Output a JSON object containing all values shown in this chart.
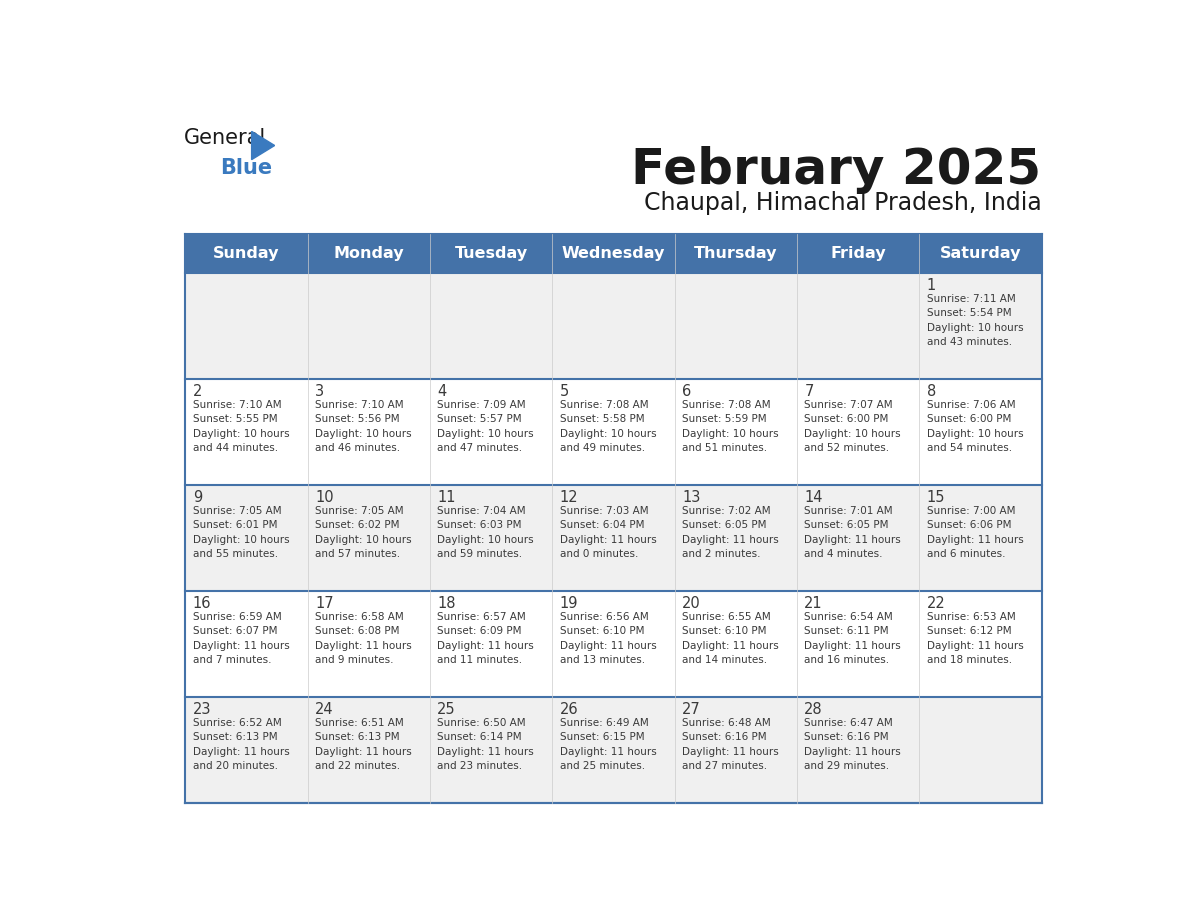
{
  "title": "February 2025",
  "subtitle": "Chaupal, Himachal Pradesh, India",
  "days_of_week": [
    "Sunday",
    "Monday",
    "Tuesday",
    "Wednesday",
    "Thursday",
    "Friday",
    "Saturday"
  ],
  "header_bg": "#4472a8",
  "header_text": "#ffffff",
  "row_bg_odd": "#f0f0f0",
  "row_bg_even": "#ffffff",
  "border_color": "#4472a8",
  "day_number_color": "#3a3a3a",
  "info_text_color": "#3a3a3a",
  "title_color": "#1a1a1a",
  "subtitle_color": "#1a1a1a",
  "blue_color": "#3a7abf",
  "weeks": [
    [
      {
        "day": null,
        "info": ""
      },
      {
        "day": null,
        "info": ""
      },
      {
        "day": null,
        "info": ""
      },
      {
        "day": null,
        "info": ""
      },
      {
        "day": null,
        "info": ""
      },
      {
        "day": null,
        "info": ""
      },
      {
        "day": 1,
        "info": "Sunrise: 7:11 AM\nSunset: 5:54 PM\nDaylight: 10 hours\nand 43 minutes."
      }
    ],
    [
      {
        "day": 2,
        "info": "Sunrise: 7:10 AM\nSunset: 5:55 PM\nDaylight: 10 hours\nand 44 minutes."
      },
      {
        "day": 3,
        "info": "Sunrise: 7:10 AM\nSunset: 5:56 PM\nDaylight: 10 hours\nand 46 minutes."
      },
      {
        "day": 4,
        "info": "Sunrise: 7:09 AM\nSunset: 5:57 PM\nDaylight: 10 hours\nand 47 minutes."
      },
      {
        "day": 5,
        "info": "Sunrise: 7:08 AM\nSunset: 5:58 PM\nDaylight: 10 hours\nand 49 minutes."
      },
      {
        "day": 6,
        "info": "Sunrise: 7:08 AM\nSunset: 5:59 PM\nDaylight: 10 hours\nand 51 minutes."
      },
      {
        "day": 7,
        "info": "Sunrise: 7:07 AM\nSunset: 6:00 PM\nDaylight: 10 hours\nand 52 minutes."
      },
      {
        "day": 8,
        "info": "Sunrise: 7:06 AM\nSunset: 6:00 PM\nDaylight: 10 hours\nand 54 minutes."
      }
    ],
    [
      {
        "day": 9,
        "info": "Sunrise: 7:05 AM\nSunset: 6:01 PM\nDaylight: 10 hours\nand 55 minutes."
      },
      {
        "day": 10,
        "info": "Sunrise: 7:05 AM\nSunset: 6:02 PM\nDaylight: 10 hours\nand 57 minutes."
      },
      {
        "day": 11,
        "info": "Sunrise: 7:04 AM\nSunset: 6:03 PM\nDaylight: 10 hours\nand 59 minutes."
      },
      {
        "day": 12,
        "info": "Sunrise: 7:03 AM\nSunset: 6:04 PM\nDaylight: 11 hours\nand 0 minutes."
      },
      {
        "day": 13,
        "info": "Sunrise: 7:02 AM\nSunset: 6:05 PM\nDaylight: 11 hours\nand 2 minutes."
      },
      {
        "day": 14,
        "info": "Sunrise: 7:01 AM\nSunset: 6:05 PM\nDaylight: 11 hours\nand 4 minutes."
      },
      {
        "day": 15,
        "info": "Sunrise: 7:00 AM\nSunset: 6:06 PM\nDaylight: 11 hours\nand 6 minutes."
      }
    ],
    [
      {
        "day": 16,
        "info": "Sunrise: 6:59 AM\nSunset: 6:07 PM\nDaylight: 11 hours\nand 7 minutes."
      },
      {
        "day": 17,
        "info": "Sunrise: 6:58 AM\nSunset: 6:08 PM\nDaylight: 11 hours\nand 9 minutes."
      },
      {
        "day": 18,
        "info": "Sunrise: 6:57 AM\nSunset: 6:09 PM\nDaylight: 11 hours\nand 11 minutes."
      },
      {
        "day": 19,
        "info": "Sunrise: 6:56 AM\nSunset: 6:10 PM\nDaylight: 11 hours\nand 13 minutes."
      },
      {
        "day": 20,
        "info": "Sunrise: 6:55 AM\nSunset: 6:10 PM\nDaylight: 11 hours\nand 14 minutes."
      },
      {
        "day": 21,
        "info": "Sunrise: 6:54 AM\nSunset: 6:11 PM\nDaylight: 11 hours\nand 16 minutes."
      },
      {
        "day": 22,
        "info": "Sunrise: 6:53 AM\nSunset: 6:12 PM\nDaylight: 11 hours\nand 18 minutes."
      }
    ],
    [
      {
        "day": 23,
        "info": "Sunrise: 6:52 AM\nSunset: 6:13 PM\nDaylight: 11 hours\nand 20 minutes."
      },
      {
        "day": 24,
        "info": "Sunrise: 6:51 AM\nSunset: 6:13 PM\nDaylight: 11 hours\nand 22 minutes."
      },
      {
        "day": 25,
        "info": "Sunrise: 6:50 AM\nSunset: 6:14 PM\nDaylight: 11 hours\nand 23 minutes."
      },
      {
        "day": 26,
        "info": "Sunrise: 6:49 AM\nSunset: 6:15 PM\nDaylight: 11 hours\nand 25 minutes."
      },
      {
        "day": 27,
        "info": "Sunrise: 6:48 AM\nSunset: 6:16 PM\nDaylight: 11 hours\nand 27 minutes."
      },
      {
        "day": 28,
        "info": "Sunrise: 6:47 AM\nSunset: 6:16 PM\nDaylight: 11 hours\nand 29 minutes."
      },
      {
        "day": null,
        "info": ""
      }
    ]
  ]
}
